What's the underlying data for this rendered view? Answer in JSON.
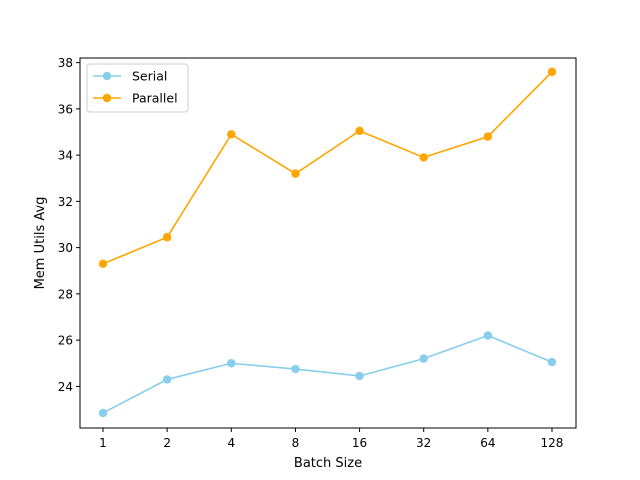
{
  "chart_data": {
    "type": "line",
    "title": "",
    "xlabel": "Batch Size",
    "ylabel": "Mem Utils Avg",
    "categories": [
      "1",
      "2",
      "4",
      "8",
      "16",
      "32",
      "64",
      "128"
    ],
    "ylim": [
      22.2,
      38.2
    ],
    "yticks": [
      24,
      26,
      28,
      30,
      32,
      34,
      36,
      38
    ],
    "grid": false,
    "legend_position": "top-left",
    "series": [
      {
        "name": "Serial",
        "color": "#87ceeb",
        "values": [
          22.85,
          24.3,
          25.0,
          24.75,
          24.45,
          25.2,
          26.2,
          25.05
        ]
      },
      {
        "name": "Parallel",
        "color": "#ffa500",
        "values": [
          29.3,
          30.45,
          34.9,
          33.2,
          35.05,
          33.9,
          34.8,
          37.6
        ]
      }
    ]
  }
}
